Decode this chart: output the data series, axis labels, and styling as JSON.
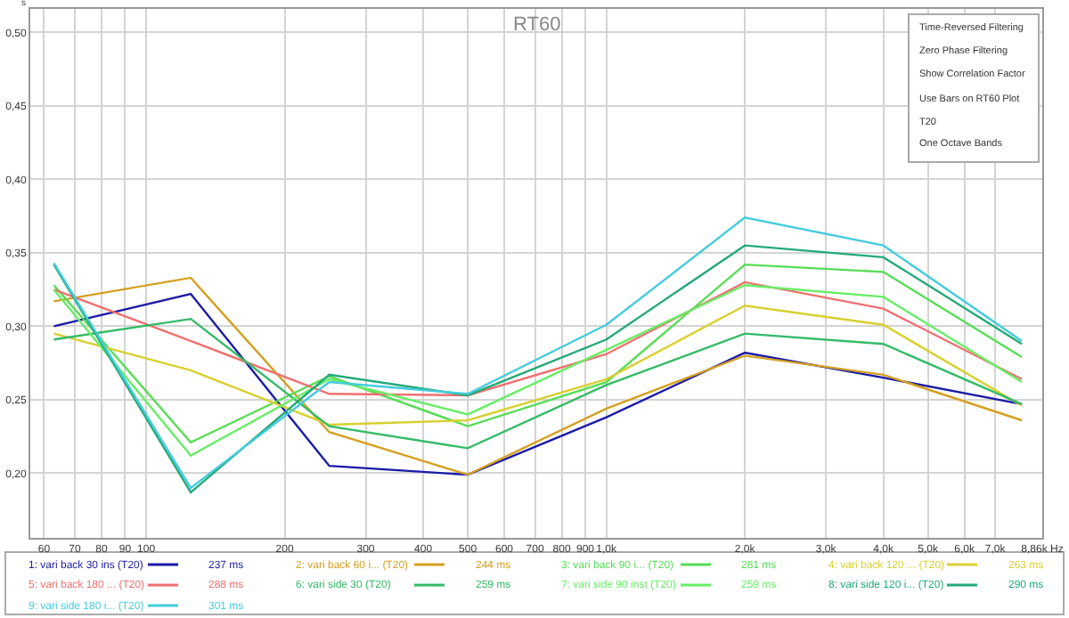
{
  "chart_data": {
    "type": "line",
    "title": "RT60",
    "ylabel": "s",
    "x": [
      63,
      125,
      250,
      500,
      1000,
      2000,
      4000,
      8000
    ],
    "log": "x",
    "grid": true,
    "legend": "bottom",
    "xlim": [
      56,
      8860
    ],
    "xticks": [
      {
        "value": 60,
        "label": "60"
      },
      {
        "value": 70,
        "label": "70"
      },
      {
        "value": 80,
        "label": "80"
      },
      {
        "value": 90,
        "label": "90"
      },
      {
        "value": 100,
        "label": "100"
      },
      {
        "value": 200,
        "label": "200"
      },
      {
        "value": 300,
        "label": "300"
      },
      {
        "value": 400,
        "label": "400"
      },
      {
        "value": 500,
        "label": "500"
      },
      {
        "value": 600,
        "label": "600"
      },
      {
        "value": 700,
        "label": "700"
      },
      {
        "value": 800,
        "label": "800"
      },
      {
        "value": 900,
        "label": "900"
      },
      {
        "value": 1000,
        "label": "1,0k"
      },
      {
        "value": 2000,
        "label": "2,0k"
      },
      {
        "value": 3000,
        "label": "3,0k"
      },
      {
        "value": 4000,
        "label": "4,0k"
      },
      {
        "value": 5000,
        "label": "5,0k"
      },
      {
        "value": 6000,
        "label": "6,0k"
      },
      {
        "value": 7000,
        "label": "7,0k"
      },
      {
        "value": 8860,
        "label": "8,86k Hz"
      }
    ],
    "ylim": [
      0.156,
      0.516
    ],
    "yticks": [
      {
        "value": 0.2,
        "label": "0,20"
      },
      {
        "value": 0.25,
        "label": "0,25"
      },
      {
        "value": 0.3,
        "label": "0,30"
      },
      {
        "value": 0.35,
        "label": "0,35"
      },
      {
        "value": 0.4,
        "label": "0,40"
      },
      {
        "value": 0.45,
        "label": "0,45"
      },
      {
        "value": 0.5,
        "label": "0,50"
      }
    ],
    "series": [
      {
        "name": "1: vari back 30 ins (T20)",
        "color": "#1a1aa8",
        "values": [
          0.3,
          0.322,
          0.205,
          0.199,
          0.238,
          0.282,
          0.265,
          0.247
        ]
      },
      {
        "name": "2: vari back 60 i... (T20)",
        "color": "#d4a020",
        "values": [
          0.317,
          0.333,
          0.228,
          0.199,
          0.244,
          0.28,
          0.267,
          0.236
        ]
      },
      {
        "name": "3: vari back 90 i... (T20)",
        "color": "#55dd55",
        "values": [
          0.328,
          0.221,
          0.266,
          0.232,
          0.262,
          0.342,
          0.337,
          0.279
        ]
      },
      {
        "name": "4: vari back 120 ... (T20)",
        "color": "#d8d030",
        "values": [
          0.295,
          0.27,
          0.233,
          0.236,
          0.264,
          0.314,
          0.301,
          0.246
        ]
      },
      {
        "name": "5: vari back 180 ... (T20)",
        "color": "#f07070",
        "values": [
          0.325,
          0.29,
          0.254,
          0.253,
          0.281,
          0.33,
          0.312,
          0.264
        ]
      },
      {
        "name": "6: vari side 30 (T20)",
        "color": "#33bb66",
        "values": [
          0.291,
          0.305,
          0.232,
          0.217,
          0.26,
          0.295,
          0.288,
          0.247
        ]
      },
      {
        "name": "7: vari side 90 inst (T20)",
        "color": "#66ee66",
        "values": [
          0.325,
          0.212,
          0.264,
          0.24,
          0.284,
          0.328,
          0.32,
          0.262
        ]
      },
      {
        "name": "8: vari side 120 i... (T20)",
        "color": "#22aa77",
        "values": [
          0.342,
          0.187,
          0.267,
          0.253,
          0.291,
          0.355,
          0.347,
          0.288
        ]
      },
      {
        "name": "9: vari side 180 i... (T20)",
        "color": "#44ccdd",
        "values": [
          0.343,
          0.19,
          0.262,
          0.254,
          0.301,
          0.374,
          0.355,
          0.29
        ]
      }
    ],
    "annotations": [
      "237 ms",
      "244 ms",
      "281 ms",
      "263 ms",
      "288 ms",
      "259 ms",
      "259 ms",
      "290 ms",
      "301 ms",
      "Time-Reversed Filtering",
      "Zero Phase Filtering",
      "Show Correlation Factor",
      "Use Bars on RT60 Plot",
      "T20",
      "One Octave Bands"
    ]
  }
}
